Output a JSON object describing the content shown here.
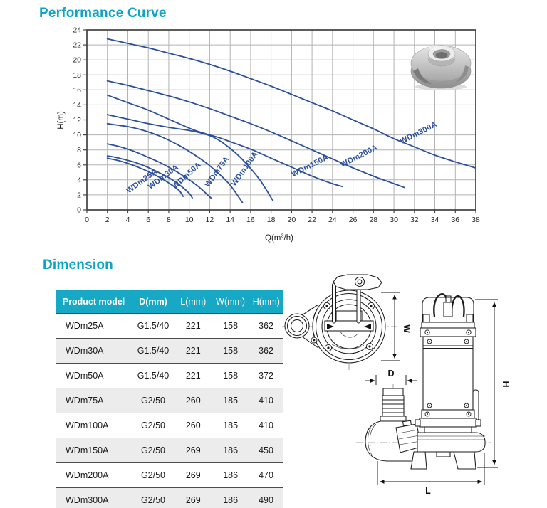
{
  "titles": {
    "performance": "Performance Curve",
    "dimension": "Dimension"
  },
  "theme": {
    "accent_teal": "#0ea4c5",
    "table_header_bg": "#17a8c5",
    "curve_blue": "#2a4f9f",
    "grid_gray": "#b3b3b3"
  },
  "chart_data": {
    "type": "line",
    "title": "Performance Curve",
    "xlabel": "Q(m3/h)",
    "xlabel_parts": [
      "Q(m",
      "3",
      "/h)"
    ],
    "ylabel": "H(m)",
    "xlim": [
      0,
      38
    ],
    "ylim": [
      0,
      24
    ],
    "xtick_step": 2,
    "ytick_step": 2,
    "grid": true,
    "legend": "labels-along-curves",
    "line_color": "#2a4f9f",
    "series": [
      {
        "name": "WDm25A",
        "points": [
          [
            2,
            6.9
          ],
          [
            3,
            6.6
          ],
          [
            4,
            6.2
          ],
          [
            5,
            5.7
          ],
          [
            6,
            5.1
          ],
          [
            7,
            4.4
          ],
          [
            8,
            3.6
          ],
          [
            9,
            2.6
          ],
          [
            9.4,
            1.8
          ]
        ],
        "label": {
          "x": 5.5,
          "y": 3.6,
          "rot": -36
        }
      },
      {
        "name": "WDm30A",
        "points": [
          [
            2,
            7.2
          ],
          [
            3,
            6.95
          ],
          [
            4,
            6.6
          ],
          [
            5,
            6.2
          ],
          [
            6,
            5.65
          ],
          [
            7,
            5.0
          ],
          [
            8,
            4.3
          ],
          [
            9,
            3.4
          ],
          [
            10,
            2.2
          ],
          [
            10.3,
            1.6
          ]
        ],
        "label": {
          "x": 7.6,
          "y": 4.15,
          "rot": -37
        }
      },
      {
        "name": "WDm50A",
        "points": [
          [
            2,
            8.8
          ],
          [
            3,
            8.5
          ],
          [
            4,
            8.1
          ],
          [
            5,
            7.6
          ],
          [
            6,
            7.0
          ],
          [
            7,
            6.4
          ],
          [
            8,
            5.7
          ],
          [
            9,
            4.9
          ],
          [
            10,
            4.0
          ],
          [
            11,
            3.0
          ],
          [
            12.2,
            1.5
          ]
        ],
        "label": {
          "x": 9.9,
          "y": 4.35,
          "rot": -42
        }
      },
      {
        "name": "WDm75A",
        "points": [
          [
            2,
            11.5
          ],
          [
            3,
            11.3
          ],
          [
            4,
            11.1
          ],
          [
            5,
            10.8
          ],
          [
            6,
            10.4
          ],
          [
            7,
            9.9
          ],
          [
            8,
            9.3
          ],
          [
            9,
            8.6
          ],
          [
            10,
            7.8
          ],
          [
            11,
            6.9
          ],
          [
            12,
            5.9
          ],
          [
            13,
            4.7
          ],
          [
            14,
            3.3
          ],
          [
            15.2,
            1.0
          ]
        ],
        "label": {
          "x": 12.9,
          "y": 4.9,
          "rot": -54
        }
      },
      {
        "name": "WDm100A",
        "points": [
          [
            2,
            12.7
          ],
          [
            4,
            12.1
          ],
          [
            6,
            11.5
          ],
          [
            8,
            11.0
          ],
          [
            10,
            10.6
          ],
          [
            11,
            10.3
          ],
          [
            12,
            9.9
          ],
          [
            13,
            9.2
          ],
          [
            14,
            8.2
          ],
          [
            15,
            7.0
          ],
          [
            16,
            5.5
          ],
          [
            17,
            3.8
          ],
          [
            18.2,
            1.2
          ]
        ],
        "label": {
          "x": 15.6,
          "y": 5.3,
          "rot": -55
        }
      },
      {
        "name": "WDm150A",
        "points": [
          [
            2,
            15.3
          ],
          [
            4,
            14.3
          ],
          [
            6,
            13.3
          ],
          [
            8,
            12.1
          ],
          [
            10,
            10.9
          ],
          [
            11,
            10.4
          ],
          [
            12,
            10.0
          ],
          [
            13,
            9.6
          ],
          [
            14,
            9.1
          ],
          [
            16,
            8.1
          ],
          [
            18,
            6.9
          ],
          [
            20,
            5.7
          ],
          [
            22,
            4.5
          ],
          [
            24,
            3.5
          ],
          [
            25,
            3.1
          ]
        ],
        "label": {
          "x": 21.9,
          "y": 5.6,
          "rot": -27
        }
      },
      {
        "name": "WDm200A",
        "points": [
          [
            2,
            17.2
          ],
          [
            4,
            16.6
          ],
          [
            6,
            15.9
          ],
          [
            8,
            15.2
          ],
          [
            10,
            14.4
          ],
          [
            12,
            13.5
          ],
          [
            14,
            12.5
          ],
          [
            16,
            11.5
          ],
          [
            18,
            10.4
          ],
          [
            20,
            9.2
          ],
          [
            22,
            8.0
          ],
          [
            24,
            6.8
          ],
          [
            26,
            5.6
          ],
          [
            28,
            4.5
          ],
          [
            30,
            3.5
          ],
          [
            31,
            3.0
          ]
        ],
        "label": {
          "x": 26.7,
          "y": 6.9,
          "rot": -27
        }
      },
      {
        "name": "WDm300A",
        "points": [
          [
            2,
            22.8
          ],
          [
            4,
            22.2
          ],
          [
            6,
            21.6
          ],
          [
            8,
            20.9
          ],
          [
            10,
            20.2
          ],
          [
            12,
            19.4
          ],
          [
            14,
            18.5
          ],
          [
            16,
            17.5
          ],
          [
            18,
            16.5
          ],
          [
            20,
            15.4
          ],
          [
            22,
            14.3
          ],
          [
            24,
            13.2
          ],
          [
            26,
            12.0
          ],
          [
            28,
            10.8
          ],
          [
            30,
            9.5
          ],
          [
            32,
            8.4
          ],
          [
            34,
            7.3
          ],
          [
            36,
            6.4
          ],
          [
            38,
            5.6
          ]
        ],
        "label": {
          "x": 32.5,
          "y": 10.0,
          "rot": -27
        }
      }
    ]
  },
  "table": {
    "headers": [
      "Product model",
      "D(mm)",
      "L(mm)",
      "W(mm)",
      "H(mm)"
    ],
    "rows": [
      [
        "WDm25A",
        "G1.5/40",
        "221",
        "158",
        "362"
      ],
      [
        "WDm30A",
        "G1.5/40",
        "221",
        "158",
        "362"
      ],
      [
        "WDm50A",
        "G1.5/40",
        "221",
        "158",
        "372"
      ],
      [
        "WDm75A",
        "G2/50",
        "260",
        "185",
        "410"
      ],
      [
        "WDm100A",
        "G2/50",
        "260",
        "185",
        "410"
      ],
      [
        "WDm150A",
        "G2/50",
        "269",
        "186",
        "450"
      ],
      [
        "WDm200A",
        "G2/50",
        "269",
        "186",
        "470"
      ],
      [
        "WDm300A",
        "G2/50",
        "269",
        "186",
        "490"
      ]
    ]
  },
  "diagram": {
    "labels": {
      "w": "W",
      "d": "D",
      "h": "H",
      "l": "L"
    }
  }
}
